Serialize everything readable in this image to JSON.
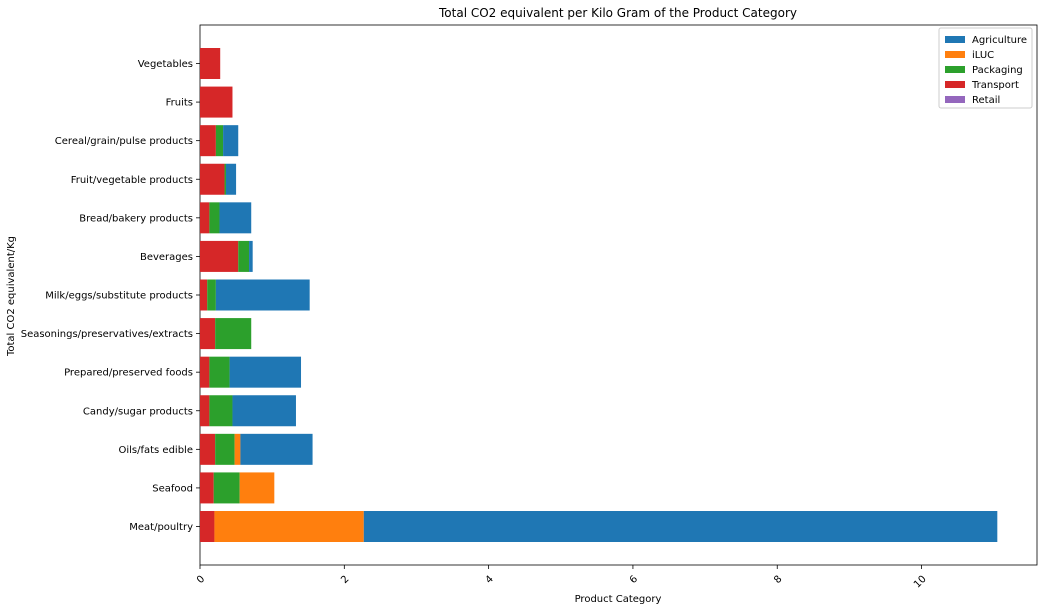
{
  "chart_data": {
    "type": "bar",
    "orientation": "horizontal",
    "stacked": true,
    "title": "Total CO2 equivalent per Kilo Gram of the Product Category",
    "xlabel": "Product Category",
    "ylabel": "Total CO2 equivalent/Kg",
    "xlim": [
      0,
      11.6
    ],
    "xticks": [
      0,
      2,
      4,
      6,
      8,
      10
    ],
    "xtick_rotation": 45,
    "grid": false,
    "legend_position": "top-right",
    "categories": [
      "Meat/poultry",
      "Seafood",
      "Oils/fats edible",
      "Candy/sugar products",
      "Prepared/preserved foods",
      "Seasonings/preservatives/extracts",
      "Milk/eggs/substitute products",
      "Beverages",
      "Bread/bakery products",
      "Fruit/vegetable products",
      "Cereal/grain/pulse products",
      "Fruits",
      "Vegetables"
    ],
    "series": [
      {
        "name": "Transport",
        "color": "#d62728",
        "values": [
          0.2,
          0.19,
          0.21,
          0.13,
          0.13,
          0.21,
          0.1,
          0.53,
          0.13,
          0.34,
          0.22,
          0.45,
          0.28
        ]
      },
      {
        "name": "Packaging",
        "color": "#2ca02c",
        "values": [
          0.0,
          0.36,
          0.27,
          0.32,
          0.28,
          0.5,
          0.12,
          0.15,
          0.14,
          0.02,
          0.1,
          0.0,
          0.0
        ]
      },
      {
        "name": "iLUC",
        "color": "#ff7f0e",
        "values": [
          2.07,
          0.48,
          0.08,
          0.0,
          0.0,
          0.0,
          0.0,
          0.0,
          0.0,
          0.0,
          0.0,
          0.0,
          0.0
        ]
      },
      {
        "name": "Agriculture",
        "color": "#1f77b4",
        "values": [
          8.78,
          0.0,
          1.0,
          0.88,
          0.99,
          0.0,
          1.3,
          0.05,
          0.44,
          0.14,
          0.21,
          0.0,
          0.0
        ]
      },
      {
        "name": "Retail",
        "color": "#9467bd",
        "values": [
          0,
          0,
          0,
          0,
          0,
          0,
          0,
          0,
          0,
          0,
          0,
          0,
          0
        ]
      }
    ],
    "legend_order": [
      "Agriculture",
      "iLUC",
      "Packaging",
      "Transport",
      "Retail"
    ]
  }
}
